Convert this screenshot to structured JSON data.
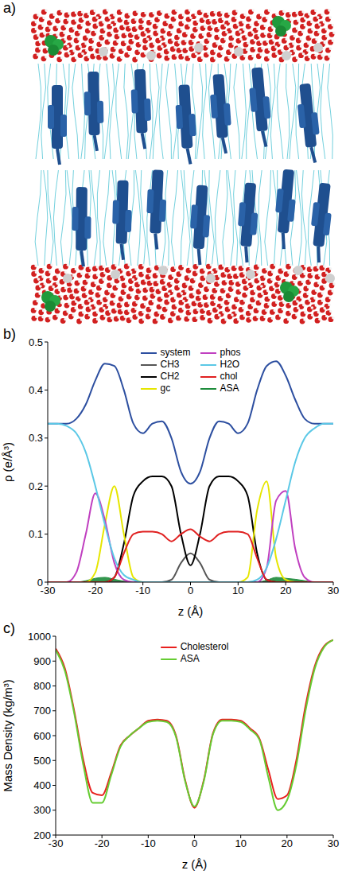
{
  "chart_data": [
    {
      "type": "image",
      "title": "a)"
    },
    {
      "type": "line",
      "title": "b)",
      "x_label": "z (Å)",
      "y_label": "ρ (e/Å³)",
      "legend": "top",
      "xlim": [
        -30,
        30
      ],
      "xticks": [
        -30,
        -20,
        -10,
        0,
        10,
        20,
        30
      ],
      "ylim": [
        0,
        0.5
      ],
      "yticks": [
        0,
        0.1,
        0.2,
        0.3,
        0.4,
        0.5
      ],
      "x": [
        -30,
        -28,
        -26,
        -24,
        -22,
        -20,
        -18,
        -16,
        -14,
        -12,
        -10,
        -8,
        -6,
        -4,
        -2,
        0,
        2,
        4,
        6,
        8,
        10,
        12,
        14,
        16,
        18,
        20,
        22,
        24,
        26,
        28,
        30
      ],
      "series": [
        {
          "name": "system",
          "color": "#2d4fa0",
          "values": [
            0.33,
            0.33,
            0.33,
            0.34,
            0.37,
            0.42,
            0.455,
            0.45,
            0.4,
            0.33,
            0.31,
            0.33,
            0.335,
            0.3,
            0.23,
            0.205,
            0.23,
            0.3,
            0.335,
            0.33,
            0.31,
            0.33,
            0.4,
            0.45,
            0.46,
            0.43,
            0.38,
            0.34,
            0.33,
            0.33,
            0.33
          ]
        },
        {
          "name": "CH3",
          "color": "#555555",
          "values": [
            0,
            0,
            0,
            0,
            0,
            0,
            0,
            0,
            0,
            0,
            0,
            0,
            0,
            0.005,
            0.04,
            0.06,
            0.04,
            0.005,
            0,
            0,
            0,
            0,
            0,
            0,
            0,
            0,
            0,
            0,
            0,
            0,
            0
          ]
        },
        {
          "name": "CH2",
          "color": "#000000",
          "values": [
            0,
            0,
            0,
            0,
            0,
            0,
            0,
            0.01,
            0.08,
            0.18,
            0.21,
            0.22,
            0.22,
            0.2,
            0.1,
            0.035,
            0.1,
            0.2,
            0.22,
            0.22,
            0.21,
            0.18,
            0.06,
            0.005,
            0,
            0,
            0,
            0,
            0,
            0,
            0
          ]
        },
        {
          "name": "gc",
          "color": "#e6e600",
          "values": [
            0,
            0,
            0,
            0,
            0,
            0.02,
            0.12,
            0.2,
            0.1,
            0.01,
            0,
            0,
            0,
            0,
            0,
            0,
            0,
            0,
            0,
            0,
            0,
            0.01,
            0.15,
            0.21,
            0.05,
            0.005,
            0,
            0,
            0,
            0,
            0
          ]
        },
        {
          "name": "phos",
          "color": "#c040c0",
          "values": [
            0,
            0,
            0,
            0.02,
            0.1,
            0.185,
            0.13,
            0.04,
            0.005,
            0,
            0,
            0,
            0,
            0,
            0,
            0,
            0,
            0,
            0,
            0,
            0,
            0,
            0,
            0.03,
            0.17,
            0.19,
            0.07,
            0.01,
            0,
            0,
            0
          ]
        },
        {
          "name": "H2O",
          "color": "#5bc8e6",
          "values": [
            0.33,
            0.33,
            0.325,
            0.31,
            0.27,
            0.2,
            0.12,
            0.05,
            0.015,
            0.005,
            0,
            0,
            0,
            0,
            0,
            0,
            0,
            0,
            0,
            0,
            0,
            0,
            0.005,
            0.03,
            0.09,
            0.17,
            0.25,
            0.3,
            0.32,
            0.33,
            0.33
          ]
        },
        {
          "name": "chol",
          "color": "#e02020",
          "values": [
            0,
            0,
            0,
            0,
            0,
            0,
            0,
            0.01,
            0.06,
            0.1,
            0.105,
            0.105,
            0.1,
            0.085,
            0.1,
            0.11,
            0.095,
            0.085,
            0.1,
            0.105,
            0.105,
            0.1,
            0.05,
            0.005,
            0,
            0,
            0,
            0,
            0,
            0,
            0
          ]
        },
        {
          "name": "ASA",
          "color": "#1e8c3c",
          "type": "area",
          "values": [
            0,
            0,
            0,
            0,
            0.003,
            0.008,
            0.01,
            0.006,
            0.002,
            0,
            0,
            0,
            0,
            0,
            0,
            0,
            0,
            0,
            0,
            0,
            0,
            0,
            0,
            0.004,
            0.01,
            0.008,
            0.006,
            0.003,
            0,
            0,
            0
          ]
        }
      ]
    },
    {
      "type": "line",
      "title": "c)",
      "x_label": "z (Å)",
      "y_label": "Mass Density (kg/m³)",
      "legend": "top",
      "xlim": [
        -30,
        30
      ],
      "xticks": [
        -30,
        -20,
        -10,
        0,
        10,
        20,
        30
      ],
      "ylim": [
        200,
        1000
      ],
      "yticks": [
        200,
        300,
        400,
        500,
        600,
        700,
        800,
        900,
        1000
      ],
      "x": [
        -30,
        -28,
        -26,
        -24,
        -22,
        -20,
        -18,
        -16,
        -14,
        -12,
        -10,
        -8,
        -6,
        -4,
        -2,
        0,
        2,
        4,
        6,
        8,
        10,
        12,
        14,
        16,
        18,
        20,
        22,
        24,
        26,
        28,
        30
      ],
      "series": [
        {
          "name": "Cholesterol",
          "color": "#e8201e",
          "values": [
            950,
            870,
            700,
            500,
            370,
            360,
            450,
            560,
            600,
            630,
            660,
            665,
            660,
            600,
            420,
            310,
            420,
            610,
            665,
            665,
            660,
            630,
            590,
            460,
            345,
            360,
            500,
            720,
            880,
            960,
            985
          ]
        },
        {
          "name": "ASA",
          "color": "#66cc33",
          "values": [
            945,
            860,
            690,
            480,
            330,
            330,
            440,
            555,
            600,
            630,
            655,
            660,
            655,
            595,
            415,
            315,
            415,
            605,
            660,
            660,
            655,
            625,
            585,
            430,
            300,
            340,
            480,
            700,
            870,
            955,
            985
          ]
        }
      ]
    }
  ]
}
